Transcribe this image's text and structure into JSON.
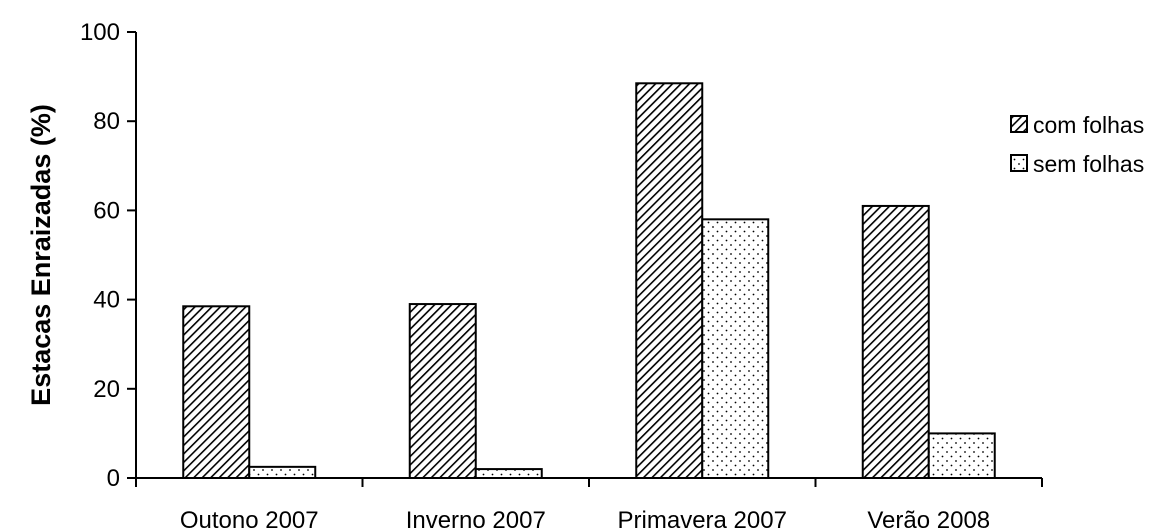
{
  "chart_data": {
    "type": "bar",
    "categories": [
      "Outono 2007",
      "Inverno 2007",
      "Primavera 2007",
      "Verão 2008"
    ],
    "series": [
      {
        "name": "com folhas",
        "values": [
          38.5,
          39,
          88.5,
          61
        ],
        "pattern": "hatch"
      },
      {
        "name": "sem folhas",
        "values": [
          2.5,
          2,
          58,
          10
        ],
        "pattern": "dots"
      }
    ],
    "title": "",
    "xlabel": "",
    "ylabel": "Estacas Enraizadas (%)",
    "ylim": [
      0,
      100
    ],
    "yticks": [
      0,
      20,
      40,
      60,
      80,
      100
    ],
    "grid": false,
    "legend_position": "right"
  }
}
